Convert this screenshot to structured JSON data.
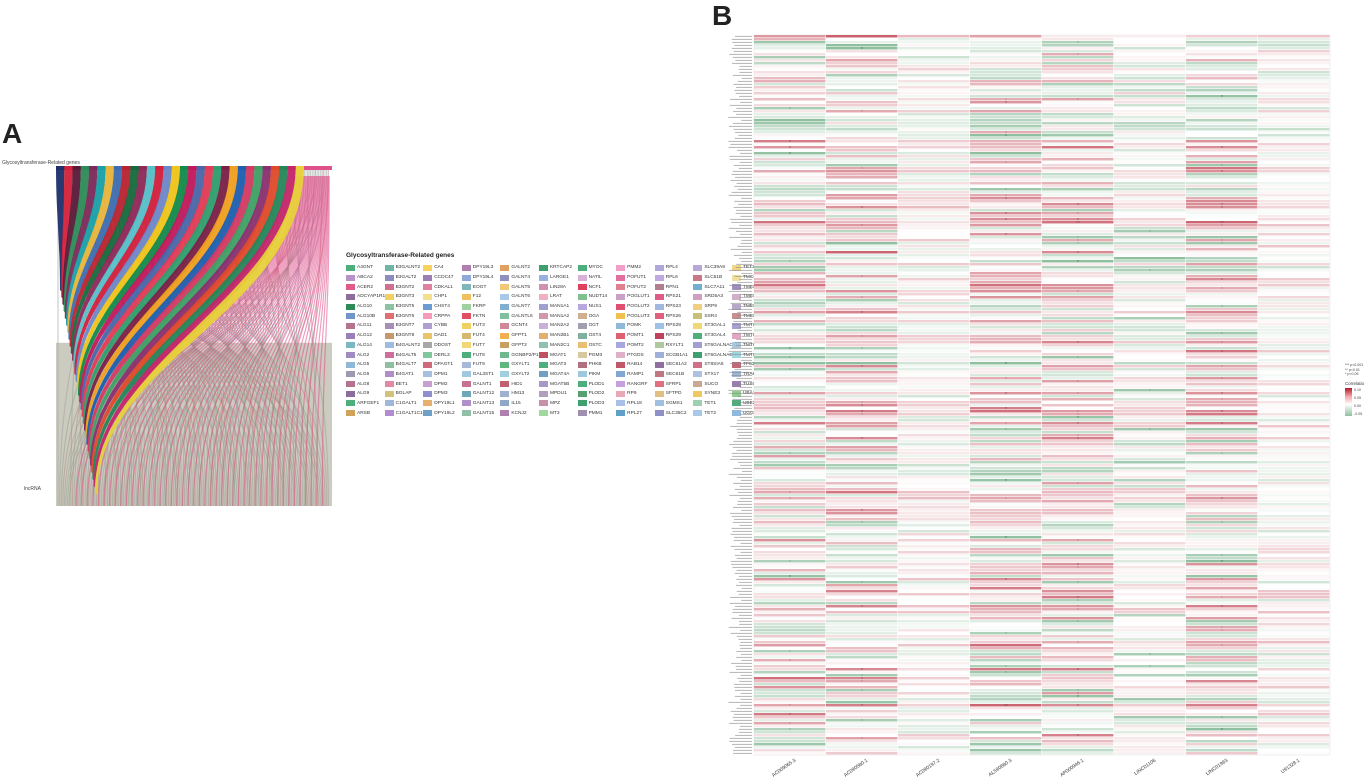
{
  "panels": {
    "a_letter": "A",
    "b_letter": "B"
  },
  "sankey": {
    "top_label": "Glycosyltransferase-Related genes",
    "bottom_label": "lncRNA"
  },
  "legend": {
    "title": "Glycosyltransferase-Related genes",
    "items": [
      {
        "name": "A4GNT",
        "color": "#4daf7c"
      },
      {
        "name": "ABCA2",
        "color": "#b893c9"
      },
      {
        "name": "ACER2",
        "color": "#e05a8a"
      },
      {
        "name": "ADCYAP1R1",
        "color": "#8c6d9e"
      },
      {
        "name": "ALG10",
        "color": "#2e8b57"
      },
      {
        "name": "ALG10B",
        "color": "#6f95c9"
      },
      {
        "name": "ALG11",
        "color": "#b5738f"
      },
      {
        "name": "ALG12",
        "color": "#9a7fb8"
      },
      {
        "name": "ALG14",
        "color": "#7ab8c4"
      },
      {
        "name": "ALG2",
        "color": "#a08cc0"
      },
      {
        "name": "ALG5",
        "color": "#8fb7d6"
      },
      {
        "name": "ALG6",
        "color": "#9d9ab0"
      },
      {
        "name": "ALG8",
        "color": "#b5738f"
      },
      {
        "name": "ALG9",
        "color": "#8c6d9e"
      },
      {
        "name": "ARFGEF1",
        "color": "#4daf7c"
      },
      {
        "name": "ARSB",
        "color": "#d0a25a"
      },
      {
        "name": "B3GALNT2",
        "color": "#6fb6a6"
      },
      {
        "name": "B3GALT2",
        "color": "#8c8cc0"
      },
      {
        "name": "B3GNT2",
        "color": "#d16f8e"
      },
      {
        "name": "B3GNT3",
        "color": "#f0d060"
      },
      {
        "name": "B3GNT5",
        "color": "#8cc3a0"
      },
      {
        "name": "B3GNT6",
        "color": "#e07070"
      },
      {
        "name": "B3GNT7",
        "color": "#a58fb6"
      },
      {
        "name": "B3GNT8",
        "color": "#c49a6c"
      },
      {
        "name": "B4GALNT2",
        "color": "#9dbce0"
      },
      {
        "name": "B4GALT5",
        "color": "#cf6d9f"
      },
      {
        "name": "B4GALT7",
        "color": "#8fbf9f"
      },
      {
        "name": "B4GAT1",
        "color": "#b08fc8"
      },
      {
        "name": "BET1",
        "color": "#e28aa4"
      },
      {
        "name": "BGLAP",
        "color": "#d3c27a"
      },
      {
        "name": "C1GALT1",
        "color": "#a0b8d8"
      },
      {
        "name": "C1GALT1C1L",
        "color": "#b28bd0"
      },
      {
        "name": "CA4",
        "color": "#f7d25c"
      },
      {
        "name": "CCDC47",
        "color": "#9c7eb5"
      },
      {
        "name": "CDKAL1",
        "color": "#e07fa0"
      },
      {
        "name": "CHP1",
        "color": "#f2e08a"
      },
      {
        "name": "CHST4",
        "color": "#6a9bd1"
      },
      {
        "name": "CRPPA",
        "color": "#f59bb8"
      },
      {
        "name": "CYBB",
        "color": "#b0a0d0"
      },
      {
        "name": "DAD1",
        "color": "#e9c46a"
      },
      {
        "name": "DDOST",
        "color": "#a8a8a8"
      },
      {
        "name": "DERL3",
        "color": "#7fc89b"
      },
      {
        "name": "DPAGT1",
        "color": "#d06a7a"
      },
      {
        "name": "DPM1",
        "color": "#a8c0e0"
      },
      {
        "name": "DPM2",
        "color": "#c8a0d0"
      },
      {
        "name": "DPM3",
        "color": "#8f8fd0"
      },
      {
        "name": "DPY19L1",
        "color": "#e8b070"
      },
      {
        "name": "DPY19L2",
        "color": "#6fa0c8"
      },
      {
        "name": "DPY19L3",
        "color": "#b07fb0"
      },
      {
        "name": "DPY19L4",
        "color": "#90a8d8"
      },
      {
        "name": "EOGT",
        "color": "#7fb8b8"
      },
      {
        "name": "F12",
        "color": "#f0c060"
      },
      {
        "name": "FKRP",
        "color": "#9fd0a0"
      },
      {
        "name": "FKTN",
        "color": "#e05060"
      },
      {
        "name": "FUT3",
        "color": "#f2d060"
      },
      {
        "name": "FUT4",
        "color": "#d4b870"
      },
      {
        "name": "FUT7",
        "color": "#f0d878"
      },
      {
        "name": "FUT8",
        "color": "#4daf7c"
      },
      {
        "name": "FUT9",
        "color": "#a8b8d8"
      },
      {
        "name": "GAL3ST1",
        "color": "#a0c8e0"
      },
      {
        "name": "GALNT1",
        "color": "#c87090"
      },
      {
        "name": "GALNT12",
        "color": "#6fa8b8"
      },
      {
        "name": "GALNT13",
        "color": "#b090c8"
      },
      {
        "name": "GALNT15",
        "color": "#90c0a8"
      },
      {
        "name": "GALNT2",
        "color": "#e0a060"
      },
      {
        "name": "GALNT4",
        "color": "#9090c0"
      },
      {
        "name": "GALNT5",
        "color": "#f0c878"
      },
      {
        "name": "GALNT6",
        "color": "#a8c8e8"
      },
      {
        "name": "GALNT7",
        "color": "#80b0d0"
      },
      {
        "name": "GALNTL6",
        "color": "#7fc0a0"
      },
      {
        "name": "GCNT4",
        "color": "#d08898"
      },
      {
        "name": "GFPT1",
        "color": "#f0b050"
      },
      {
        "name": "GFPT2",
        "color": "#c8a060"
      },
      {
        "name": "GGNBP2/P1",
        "color": "#6fb890"
      },
      {
        "name": "GXYLT1",
        "color": "#5fb880"
      },
      {
        "name": "GXYLT2",
        "color": "#a0d0e0"
      },
      {
        "name": "HID1",
        "color": "#c06070"
      },
      {
        "name": "HM13",
        "color": "#a0b0d0"
      },
      {
        "name": "IL15",
        "color": "#8fa8c8"
      },
      {
        "name": "KCNJ2",
        "color": "#b080b0"
      },
      {
        "name": "KRTCAP2",
        "color": "#3f9f6f"
      },
      {
        "name": "LARGE1",
        "color": "#9ab0e0"
      },
      {
        "name": "LIN28A",
        "color": "#d090b0"
      },
      {
        "name": "LRAT",
        "color": "#f0b0c0"
      },
      {
        "name": "MAN1A1",
        "color": "#a0a0d0"
      },
      {
        "name": "MAN1A2",
        "color": "#d098a8"
      },
      {
        "name": "MAN2A2",
        "color": "#c8b0d8"
      },
      {
        "name": "MAN2B1",
        "color": "#e0b070"
      },
      {
        "name": "MAN2C1",
        "color": "#90c0b0"
      },
      {
        "name": "MGAT1",
        "color": "#c05060"
      },
      {
        "name": "MGAT3",
        "color": "#4daf7c"
      },
      {
        "name": "MGAT4A",
        "color": "#6fa0c0"
      },
      {
        "name": "MGAT5B",
        "color": "#a898c8"
      },
      {
        "name": "MPDU1",
        "color": "#b0a0c0"
      },
      {
        "name": "MPZ",
        "color": "#c890a8"
      },
      {
        "name": "MT3",
        "color": "#a0d8a0"
      },
      {
        "name": "MYOC",
        "color": "#4daf7c"
      },
      {
        "name": "NATIL",
        "color": "#d8b0d8"
      },
      {
        "name": "NCF1",
        "color": "#e04060"
      },
      {
        "name": "NUDT14",
        "color": "#80c090"
      },
      {
        "name": "NUS1",
        "color": "#b8a8e0"
      },
      {
        "name": "OGA",
        "color": "#d0b090"
      },
      {
        "name": "OGT",
        "color": "#a0a0b0"
      },
      {
        "name": "OST4",
        "color": "#7fb0a0"
      },
      {
        "name": "OSTC",
        "color": "#e8c070"
      },
      {
        "name": "PGM3",
        "color": "#d8c8a0"
      },
      {
        "name": "PHKB",
        "color": "#b07080"
      },
      {
        "name": "PIKM",
        "color": "#9fc8e0"
      },
      {
        "name": "PLOD1",
        "color": "#4daf7c"
      },
      {
        "name": "PLOD2",
        "color": "#5aa070"
      },
      {
        "name": "PLOD3",
        "color": "#3f9f6f"
      },
      {
        "name": "PMM1",
        "color": "#a090b0"
      },
      {
        "name": "PMM2",
        "color": "#f0a0c8"
      },
      {
        "name": "POFUT1",
        "color": "#e070a0"
      },
      {
        "name": "POFUT2",
        "color": "#e08090"
      },
      {
        "name": "POGLUT1",
        "color": "#c8a0c8"
      },
      {
        "name": "POGLUT2",
        "color": "#e05070"
      },
      {
        "name": "POGLUT3",
        "color": "#f0c050"
      },
      {
        "name": "POMK",
        "color": "#90b8d8"
      },
      {
        "name": "POMT1",
        "color": "#e06070"
      },
      {
        "name": "POMT2",
        "color": "#a8a8e0"
      },
      {
        "name": "PTGDS",
        "color": "#e0b0c8"
      },
      {
        "name": "RAB14",
        "color": "#c05868"
      },
      {
        "name": "RAMP1",
        "color": "#80a8d0"
      },
      {
        "name": "RANGRF",
        "color": "#c8a0e0"
      },
      {
        "name": "RP9",
        "color": "#e8a8b8"
      },
      {
        "name": "RPL18",
        "color": "#a8c0e8"
      },
      {
        "name": "RPL27",
        "color": "#5fa0c8"
      },
      {
        "name": "RPL4",
        "color": "#b0a8d8"
      },
      {
        "name": "RPL6",
        "color": "#c0a8e0"
      },
      {
        "name": "RPN1",
        "color": "#b08090"
      },
      {
        "name": "RPS21",
        "color": "#e05c88"
      },
      {
        "name": "RPS23",
        "color": "#a0b8e0"
      },
      {
        "name": "RPS26",
        "color": "#e06080"
      },
      {
        "name": "RPS28",
        "color": "#9fc0e8"
      },
      {
        "name": "RPS29",
        "color": "#c04060"
      },
      {
        "name": "RXYLT1",
        "color": "#b0c8a0"
      },
      {
        "name": "SCGB1A1",
        "color": "#a0b0d8"
      },
      {
        "name": "SEC61A2",
        "color": "#8f6fa0"
      },
      {
        "name": "SEC61B",
        "color": "#c07880"
      },
      {
        "name": "SFRP1",
        "color": "#e07080"
      },
      {
        "name": "SFTPD",
        "color": "#e0c080"
      },
      {
        "name": "SGMS1",
        "color": "#a0c0e0"
      },
      {
        "name": "SLC35C2",
        "color": "#9090c8"
      },
      {
        "name": "SLC39A9",
        "color": "#b8a8d8"
      },
      {
        "name": "SLC51B",
        "color": "#c87888"
      },
      {
        "name": "SLC7A11",
        "color": "#6fb0d0"
      },
      {
        "name": "SRD5A3",
        "color": "#d0a0c0"
      },
      {
        "name": "SRP9",
        "color": "#f0d080"
      },
      {
        "name": "SSR4",
        "color": "#c8c078"
      },
      {
        "name": "ST3GAL1",
        "color": "#f0d878"
      },
      {
        "name": "ST3GAL4",
        "color": "#4daf7c"
      },
      {
        "name": "ST6GALNAC3",
        "color": "#a0a0d0"
      },
      {
        "name": "ST6GALNAC4",
        "color": "#3f9f6f"
      },
      {
        "name": "ST8SIA6",
        "color": "#d07088"
      },
      {
        "name": "STX17",
        "color": "#b0c0e0"
      },
      {
        "name": "SUCO",
        "color": "#c8a890"
      },
      {
        "name": "SYNE3",
        "color": "#f0c860"
      },
      {
        "name": "TET1",
        "color": "#9fd0b0"
      },
      {
        "name": "TET2",
        "color": "#a8c8e8"
      },
      {
        "name": "TET3",
        "color": "#f0d888"
      },
      {
        "name": "TMCC1",
        "color": "#f0e0a0"
      },
      {
        "name": "TMEM165",
        "color": "#a090c0"
      },
      {
        "name": "TMEM258",
        "color": "#d0b0c8"
      },
      {
        "name": "TMEM59",
        "color": "#b8a8c8"
      },
      {
        "name": "TMEM97",
        "color": "#c89090"
      },
      {
        "name": "TMTC1",
        "color": "#a8a0d0"
      },
      {
        "name": "TMTC2",
        "color": "#e0a8c0"
      },
      {
        "name": "TMTC3",
        "color": "#a8c8e0"
      },
      {
        "name": "TMTC4",
        "color": "#a0d8e0"
      },
      {
        "name": "TP53",
        "color": "#c06878"
      },
      {
        "name": "TRAK1",
        "color": "#a0b8d8"
      },
      {
        "name": "TUSC3",
        "color": "#9a7fb0"
      },
      {
        "name": "UBA1",
        "color": "#8fcf8f"
      },
      {
        "name": "UBE2J1",
        "color": "#4daf7c"
      },
      {
        "name": "UGGT1",
        "color": "#90b8e0"
      },
      {
        "name": "UGGT2",
        "color": "#e070b0"
      },
      {
        "name": "VEGFB",
        "color": "#f0c8d8"
      },
      {
        "name": "XXYLT1",
        "color": "#a898c0"
      },
      {
        "name": "YIPF2",
        "color": "#f0d070"
      },
      {
        "name": "YIPF5",
        "color": "#f2c860"
      },
      {
        "name": "ZC3H12A",
        "color": "#c8a070"
      }
    ]
  },
  "heatmap": {
    "row_labels_note": "",
    "significance": [
      "*** p<0.001",
      "** p<0.01",
      "* p<0.05"
    ],
    "colorbar_title": "Correlation",
    "colorbar_ticks": [
      "0.10",
      "0.05",
      "0.00",
      "-0.05"
    ]
  },
  "chart_data": [
    {
      "type": "sankey",
      "title": "",
      "source_label": "Glycosyltransferase-Related genes",
      "target_label": "lncRNA"
    },
    {
      "type": "heatmap",
      "title": "",
      "columns": [
        "AC009065.3",
        "AC090580.1",
        "AC090197.2",
        "AL590680.3",
        "AP000946.1",
        "LINC01106",
        "LINC01963",
        "U91328.1"
      ],
      "value_range": [
        -0.05,
        0.1
      ],
      "colors": {
        "positive": "#b2182b",
        "zero": "#ffffff",
        "negative": "#8fbf9f"
      }
    }
  ]
}
